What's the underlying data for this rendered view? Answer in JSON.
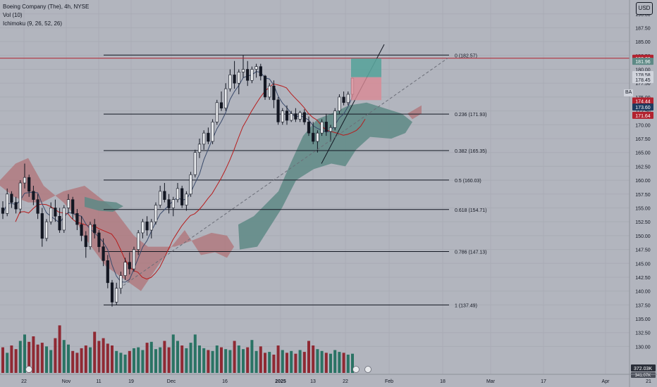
{
  "legend": {
    "title": "Boeing Company (The), 4h, NYSE",
    "vol": "Vol (10)",
    "ichimoku": "Ichimoku (9, 26, 52, 26)"
  },
  "currency": "USD",
  "symbol_tag": "BA",
  "colors": {
    "up": "#26a69a",
    "down": "#ef5350",
    "bg": "#b2b5be",
    "cloud_up": "#5e8a86",
    "cloud_down": "#b07377",
    "fib": "#131722",
    "hline": "#b2222f",
    "kijun": "#b71c1c",
    "tenkan": "#2962ff"
  },
  "chart_data": {
    "type": "candlestick",
    "y_axis_ticks": [
      "190.00",
      "187.50",
      "185.00",
      "182.50",
      "180.00",
      "177.50",
      "175.00",
      "172.50",
      "170.00",
      "167.50",
      "165.00",
      "162.50",
      "160.00",
      "157.50",
      "155.00",
      "152.50",
      "150.00",
      "147.50",
      "145.00",
      "142.50",
      "140.00",
      "137.50",
      "135.00",
      "132.50",
      "130.00"
    ],
    "ylim": [
      126.5,
      192.0
    ],
    "x_axis_ticks": [
      "22",
      "Nov",
      "11",
      "19",
      "Dec",
      "16",
      "2025",
      "13",
      "22",
      "Feb",
      "18",
      "Mar",
      "17",
      "Apr",
      "21"
    ],
    "price_labels": [
      {
        "value": "182.00",
        "price": 182.0,
        "bg": "#b2222f",
        "fg": "#ffffff"
      },
      {
        "value": "181.96",
        "price": 181.45,
        "bg": "#5e8a86",
        "fg": "#ffffff"
      },
      {
        "value": "178.58",
        "price": 179.05,
        "bg": "#d1d4dc",
        "fg": "#131722"
      },
      {
        "value": "178.45",
        "price": 178.15,
        "bg": "#d1d4dc",
        "fg": "#131722"
      },
      {
        "value": "174.44",
        "price": 174.3,
        "bg": "#b2222f",
        "fg": "#ffffff"
      },
      {
        "value": "173.60",
        "price": 173.2,
        "bg": "#1e3a5f",
        "fg": "#ffffff"
      },
      {
        "value": "171.64",
        "price": 171.7,
        "bg": "#b2222f",
        "fg": "#ffffff"
      }
    ],
    "volume_labels": [
      "372.03K",
      "341.07K"
    ],
    "fib_levels": [
      {
        "label": "0 (182.57)",
        "price": 182.57
      },
      {
        "label": "0.236 (171.93)",
        "price": 171.93
      },
      {
        "label": "0.382 (165.35)",
        "price": 165.35
      },
      {
        "label": "0.5 (160.03)",
        "price": 160.03
      },
      {
        "label": "0.618 (154.71)",
        "price": 154.71
      },
      {
        "label": "0.786 (147.13)",
        "price": 147.13
      },
      {
        "label": "1 (137.49)",
        "price": 137.49
      }
    ],
    "horizontal_line": 182.0,
    "candles": [
      [
        155.0,
        156.2,
        153.0,
        154.0
      ],
      [
        154.0,
        158.5,
        153.5,
        157.5
      ],
      [
        157.5,
        158.0,
        155.0,
        156.0
      ],
      [
        156.0,
        157.0,
        154.0,
        154.8
      ],
      [
        154.8,
        160.0,
        154.0,
        159.5
      ],
      [
        159.5,
        163.0,
        158.5,
        160.5
      ],
      [
        160.5,
        161.0,
        157.0,
        158.0
      ],
      [
        158.0,
        159.0,
        155.5,
        156.5
      ],
      [
        156.5,
        157.5,
        153.0,
        154.0
      ],
      [
        154.0,
        155.0,
        148.0,
        149.5
      ],
      [
        149.5,
        153.0,
        149.0,
        152.5
      ],
      [
        152.5,
        156.0,
        152.0,
        155.0
      ],
      [
        155.0,
        156.5,
        152.5,
        153.5
      ],
      [
        153.5,
        155.0,
        150.5,
        151.0
      ],
      [
        151.0,
        155.5,
        150.5,
        155.0
      ],
      [
        155.0,
        157.5,
        154.0,
        156.5
      ],
      [
        156.5,
        157.0,
        153.0,
        154.0
      ],
      [
        154.0,
        154.8,
        151.0,
        152.0
      ],
      [
        152.0,
        153.5,
        149.0,
        150.0
      ],
      [
        150.0,
        150.8,
        146.0,
        148.0
      ],
      [
        148.0,
        152.5,
        147.5,
        152.0
      ],
      [
        152.0,
        153.0,
        149.5,
        150.5
      ],
      [
        150.5,
        151.0,
        147.0,
        148.0
      ],
      [
        148.0,
        149.5,
        144.5,
        145.5
      ],
      [
        145.5,
        146.5,
        140.5,
        141.5
      ],
      [
        141.5,
        142.0,
        137.2,
        138.0
      ],
      [
        138.0,
        141.5,
        137.5,
        140.5
      ],
      [
        140.5,
        143.5,
        139.5,
        142.8
      ],
      [
        142.8,
        146.0,
        142.0,
        145.2
      ],
      [
        145.2,
        147.0,
        143.0,
        144.0
      ],
      [
        144.0,
        148.0,
        143.5,
        147.5
      ],
      [
        147.5,
        151.0,
        146.5,
        150.5
      ],
      [
        150.5,
        153.0,
        149.5,
        152.5
      ],
      [
        152.5,
        153.5,
        150.0,
        151.0
      ],
      [
        151.0,
        153.0,
        149.5,
        152.5
      ],
      [
        152.5,
        156.0,
        152.0,
        155.5
      ],
      [
        155.5,
        159.0,
        155.0,
        158.0
      ],
      [
        158.0,
        159.5,
        156.0,
        156.5
      ],
      [
        156.5,
        157.5,
        154.0,
        155.0
      ],
      [
        155.0,
        157.0,
        153.5,
        156.5
      ],
      [
        156.5,
        159.5,
        156.0,
        158.5
      ],
      [
        158.5,
        159.0,
        155.0,
        155.5
      ],
      [
        155.5,
        158.0,
        154.5,
        157.5
      ],
      [
        157.5,
        161.5,
        157.0,
        161.0
      ],
      [
        161.0,
        165.5,
        160.5,
        165.0
      ],
      [
        165.0,
        167.5,
        164.0,
        166.5
      ],
      [
        166.5,
        169.0,
        165.5,
        168.5
      ],
      [
        168.5,
        169.5,
        166.5,
        167.0
      ],
      [
        167.0,
        171.0,
        166.5,
        170.5
      ],
      [
        170.5,
        174.5,
        170.0,
        174.0
      ],
      [
        174.0,
        176.0,
        172.5,
        173.0
      ],
      [
        173.0,
        177.5,
        172.5,
        176.5
      ],
      [
        176.5,
        180.0,
        176.0,
        179.0
      ],
      [
        179.0,
        181.5,
        176.5,
        177.5
      ],
      [
        177.5,
        180.0,
        175.5,
        179.5
      ],
      [
        179.5,
        182.6,
        178.5,
        180.0
      ],
      [
        180.0,
        181.5,
        177.0,
        178.0
      ],
      [
        178.0,
        180.5,
        177.5,
        180.0
      ],
      [
        180.0,
        181.0,
        178.5,
        180.5
      ],
      [
        180.5,
        181.0,
        178.0,
        178.8
      ],
      [
        178.8,
        179.0,
        174.5,
        175.0
      ],
      [
        175.0,
        177.5,
        174.5,
        177.0
      ],
      [
        177.0,
        178.0,
        173.0,
        174.5
      ],
      [
        174.5,
        175.0,
        170.0,
        170.5
      ],
      [
        170.5,
        173.0,
        170.0,
        172.5
      ],
      [
        172.5,
        173.5,
        170.0,
        170.8
      ],
      [
        170.8,
        172.5,
        170.5,
        172.0
      ],
      [
        172.0,
        173.0,
        170.5,
        171.0
      ],
      [
        171.0,
        172.5,
        170.5,
        172.2
      ],
      [
        172.2,
        172.8,
        170.0,
        170.5
      ],
      [
        170.5,
        171.5,
        168.0,
        168.5
      ],
      [
        168.5,
        170.5,
        166.5,
        167.0
      ],
      [
        167.0,
        169.0,
        165.0,
        168.5
      ],
      [
        168.5,
        171.0,
        168.0,
        170.5
      ],
      [
        170.5,
        172.0,
        168.0,
        168.8
      ],
      [
        168.8,
        170.0,
        167.0,
        169.5
      ],
      [
        169.5,
        173.0,
        169.0,
        172.5
      ],
      [
        172.5,
        175.5,
        172.0,
        175.0
      ],
      [
        175.0,
        176.0,
        173.5,
        174.0
      ],
      [
        174.0,
        176.0,
        173.5,
        175.5
      ],
      [
        175.5,
        178.5,
        175.0,
        178.4
      ]
    ],
    "volumes": [
      0.28,
      0.22,
      0.3,
      0.26,
      0.35,
      0.42,
      0.34,
      0.4,
      0.31,
      0.33,
      0.29,
      0.25,
      0.38,
      0.52,
      0.36,
      0.31,
      0.24,
      0.22,
      0.27,
      0.3,
      0.28,
      0.45,
      0.35,
      0.38,
      0.32,
      0.3,
      0.24,
      0.22,
      0.2,
      0.24,
      0.27,
      0.28,
      0.25,
      0.33,
      0.34,
      0.26,
      0.28,
      0.35,
      0.28,
      0.42,
      0.35,
      0.3,
      0.27,
      0.33,
      0.42,
      0.3,
      0.27,
      0.25,
      0.24,
      0.3,
      0.28,
      0.26,
      0.25,
      0.35,
      0.3,
      0.26,
      0.28,
      0.36,
      0.24,
      0.29,
      0.22,
      0.23,
      0.2,
      0.3,
      0.25,
      0.22,
      0.24,
      0.21,
      0.25,
      0.23,
      0.35,
      0.3,
      0.26,
      0.24,
      0.22,
      0.21,
      0.25,
      0.23,
      0.22,
      0.2,
      0.21
    ]
  }
}
